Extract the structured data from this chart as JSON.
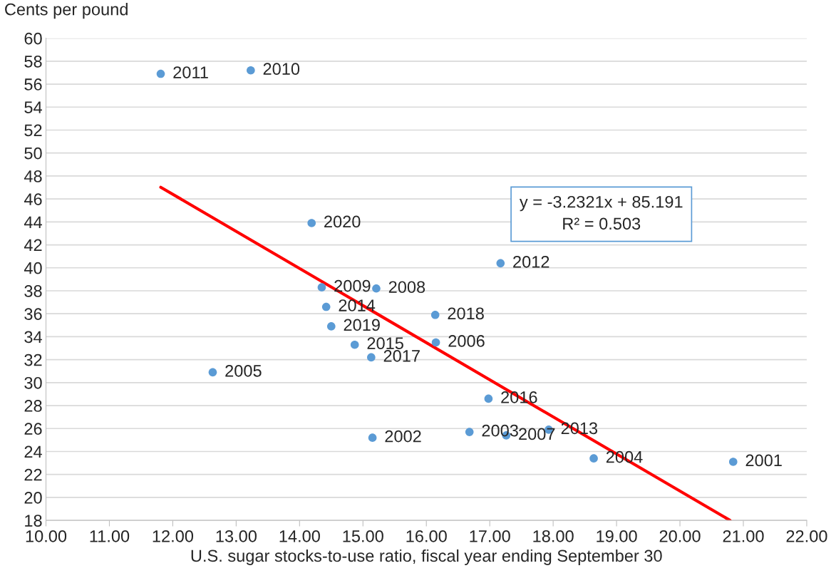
{
  "chart_data": {
    "type": "scatter",
    "xlabel": "U.S. sugar stocks-to-use ratio, fiscal year ending September 30",
    "ylabel": "Cents per pound",
    "series": [
      {
        "color": "#5b9bd5",
        "marker": "circle",
        "x": [
          20.84,
          15.15,
          16.68,
          18.64,
          12.63,
          16.15,
          17.26,
          15.21,
          14.35,
          13.23,
          11.81,
          17.17,
          17.93,
          14.42,
          14.87,
          16.98,
          15.13,
          16.14,
          14.5,
          14.19
        ],
        "values": [
          23.1,
          25.2,
          25.7,
          23.4,
          30.9,
          33.5,
          25.4,
          38.2,
          38.3,
          57.2,
          56.9,
          40.4,
          25.9,
          36.6,
          33.3,
          28.6,
          32.2,
          35.9,
          34.9,
          43.9
        ]
      },
      {
        "type": "line",
        "color": "#ff0000",
        "x": [
          11.81,
          20.79
        ],
        "values": [
          47.02,
          18
        ]
      }
    ],
    "annotations": [
      {
        "text": "2001",
        "x": 20.84,
        "y": 23.1
      },
      {
        "text": "2002",
        "x": 15.15,
        "y": 25.2
      },
      {
        "text": "2003",
        "x": 16.68,
        "y": 25.7
      },
      {
        "text": "2004",
        "x": 18.64,
        "y": 23.4
      },
      {
        "text": "2005",
        "x": 12.63,
        "y": 30.9
      },
      {
        "text": "2006",
        "x": 16.15,
        "y": 33.5
      },
      {
        "text": "2007",
        "x": 17.26,
        "y": 25.4
      },
      {
        "text": "2008",
        "x": 15.21,
        "y": 38.2
      },
      {
        "text": "2009",
        "x": 14.35,
        "y": 38.3
      },
      {
        "text": "2010",
        "x": 13.23,
        "y": 57.2
      },
      {
        "text": "2011",
        "x": 11.81,
        "y": 56.9
      },
      {
        "text": "2012",
        "x": 17.17,
        "y": 40.4
      },
      {
        "text": "2013",
        "x": 17.93,
        "y": 25.9
      },
      {
        "text": "2014",
        "x": 14.42,
        "y": 36.6
      },
      {
        "text": "2015",
        "x": 14.87,
        "y": 33.3
      },
      {
        "text": "2016",
        "x": 16.98,
        "y": 28.6
      },
      {
        "text": "2017",
        "x": 15.13,
        "y": 32.2
      },
      {
        "text": "2018",
        "x": 16.14,
        "y": 35.9
      },
      {
        "text": "2019",
        "x": 14.5,
        "y": 34.9
      },
      {
        "text": "2020",
        "x": 14.19,
        "y": 43.9
      },
      "y = -3.2321x + 85.191\nR² = 0.503"
    ],
    "xlim": [
      10,
      22
    ],
    "xticks": [
      {
        "value": 10,
        "label": "10.00"
      },
      {
        "value": 11,
        "label": "11.00"
      },
      {
        "value": 12,
        "label": "12.00"
      },
      {
        "value": 13,
        "label": "13.00"
      },
      {
        "value": 14,
        "label": "14.00"
      },
      {
        "value": 15,
        "label": "15.00"
      },
      {
        "value": 16,
        "label": "16.00"
      },
      {
        "value": 17,
        "label": "17.00"
      },
      {
        "value": 18,
        "label": "18.00"
      },
      {
        "value": 19,
        "label": "19.00"
      },
      {
        "value": 20,
        "label": "20.00"
      },
      {
        "value": 21,
        "label": "21.00"
      },
      {
        "value": 22,
        "label": "22.00"
      }
    ],
    "ylim": [
      18,
      60
    ],
    "yticks": [
      18,
      20,
      22,
      24,
      26,
      28,
      30,
      32,
      34,
      36,
      38,
      40,
      42,
      44,
      46,
      48,
      50,
      52,
      54,
      56,
      58,
      60
    ],
    "grid": "y"
  }
}
